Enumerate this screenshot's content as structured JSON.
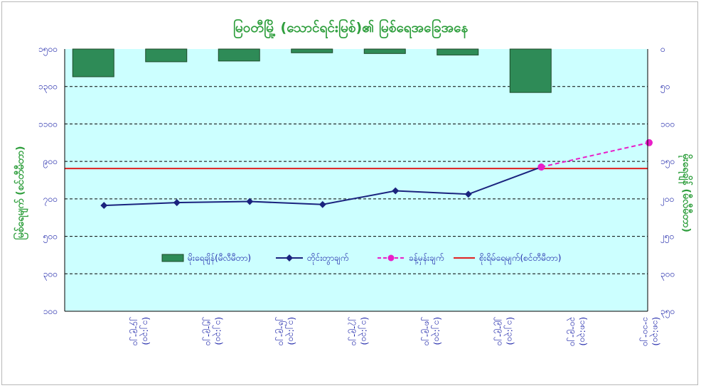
{
  "chart_data": {
    "type": "bar+line",
    "title": "မြဝတီမြို့ (သောင်ရင်းမြစ်)၏ မြစ်ရေအခြေအနေ",
    "ylabel_left": "မြစ်ရေမျက် (စင်တီမီတာ)",
    "ylabel_right": "မိုးရေချိန် (မီလီမီတာ)",
    "left_axis": {
      "min": 100,
      "max": 1500,
      "step": 200,
      "tick_labels": [
        "၁၀၀",
        "၃၀၀",
        "၅၀၀",
        "၇၀၀",
        "၉၀၀",
        "၁၁၀၀",
        "၁၃၀၀",
        "၁၅၀၀"
      ]
    },
    "right_axis": {
      "min": 0,
      "max": 350,
      "step": 50,
      "inverted": true,
      "tick_labels": [
        "၀",
        "၅၀",
        "၁၀၀",
        "၁၅၀",
        "၂၀၀",
        "၂၅၀",
        "၃၀၀",
        "၃၅၀"
      ]
    },
    "categories": [
      {
        "line1": "၂၄-၉-၂၀",
        "line2": "(၁၂:၃၀)"
      },
      {
        "line1": "၂၅-၉-၂၀",
        "line2": "(၁၂:၃၀)"
      },
      {
        "line1": "၂၆-၉-၂၀",
        "line2": "(၁၂:၃၀)"
      },
      {
        "line1": "၂၇-၉-၂၀",
        "line2": "(၁၂:၃၀)"
      },
      {
        "line1": "၂၈-၉-၂၀",
        "line2": "(၁၂:၃၀)"
      },
      {
        "line1": "၂၉-၉-၂၀",
        "line2": "(၁၂:၃၀)"
      },
      {
        "line1": "၃၀-၉-၂၀",
        "line2": "(၁၈:၃၀)"
      },
      {
        "line1": "၁-၁၀-၂၀",
        "line2": "(၁၈:၃၀)"
      }
    ],
    "series": [
      {
        "name": "မိုးရေချိန်(မီလီမီတာ)",
        "type": "bar",
        "axis": "right",
        "color": "#2e8b57",
        "values": [
          37,
          17,
          16,
          5,
          6,
          8,
          58,
          null
        ]
      },
      {
        "name": "တိုင်းတွာချက်",
        "type": "line",
        "axis": "left",
        "color": "#1a237e",
        "values": [
          665,
          680,
          686,
          670,
          743,
          725,
          870,
          null
        ]
      },
      {
        "name": "ခန့်မှန်းချက်",
        "type": "line-dashed",
        "axis": "left",
        "color": "#e91ec8",
        "values": [
          null,
          null,
          null,
          null,
          null,
          null,
          870,
          1000
        ]
      },
      {
        "name": "စိုးရိမ်ရေမျက်(စင်တီမီတာ)",
        "type": "hline",
        "axis": "left",
        "color": "#e02020",
        "value": 862
      }
    ],
    "plot_background": "#ccffff",
    "grid": true,
    "legend_position": "inside-bottom"
  }
}
